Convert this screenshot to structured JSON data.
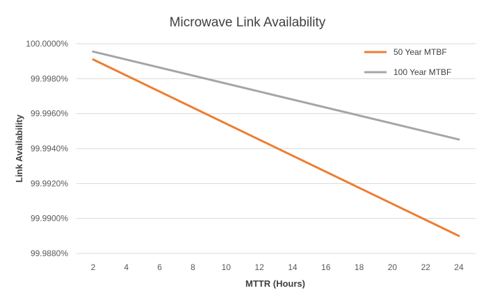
{
  "chart_data": {
    "type": "line",
    "title": "Microwave Link Availability",
    "xlabel": "MTTR (Hours)",
    "ylabel": "Link  Availability",
    "x": [
      2,
      24
    ],
    "xticks": [
      "2",
      "4",
      "6",
      "8",
      "10",
      "12",
      "14",
      "16",
      "18",
      "20",
      "22",
      "24"
    ],
    "yticks": [
      "100.0000%",
      "99.9980%",
      "99.9960%",
      "99.9940%",
      "99.9920%",
      "99.9900%",
      "99.9880%"
    ],
    "ylim": [
      99.988,
      100.0
    ],
    "grid": true,
    "legend_position": "top-right",
    "series": [
      {
        "name": "50 Year MTBF",
        "color": "#ED7D31",
        "x": [
          2,
          24
        ],
        "values": [
          99.9991,
          99.989
        ]
      },
      {
        "name": "100 Year MTBF",
        "color": "#A5A5A5",
        "x": [
          2,
          24
        ],
        "values": [
          99.99955,
          99.99452
        ]
      }
    ]
  }
}
